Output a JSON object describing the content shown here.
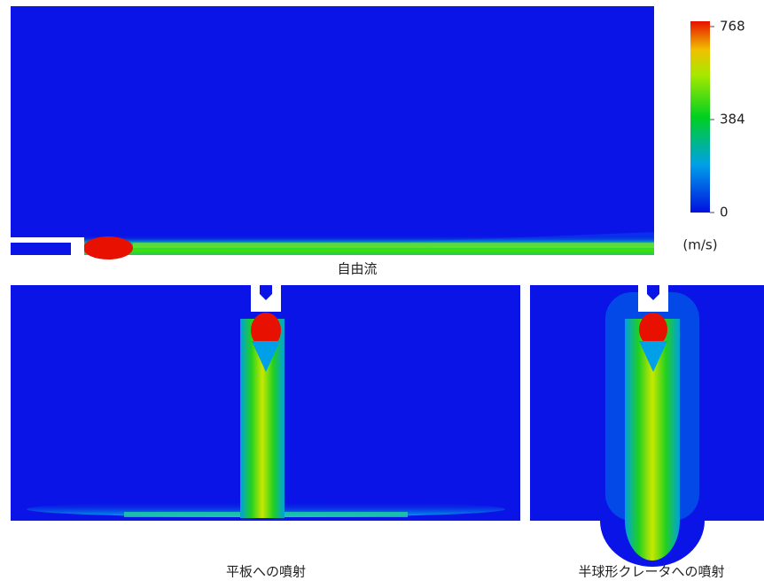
{
  "colorbar": {
    "lim": [
      0,
      768
    ],
    "ticks": [
      768,
      384,
      0
    ],
    "unit": "(m/s)"
  },
  "panels": [
    {
      "caption": "自由流"
    },
    {
      "caption": "平板への噴射"
    },
    {
      "caption": "半球形クレータへの噴射"
    }
  ]
}
